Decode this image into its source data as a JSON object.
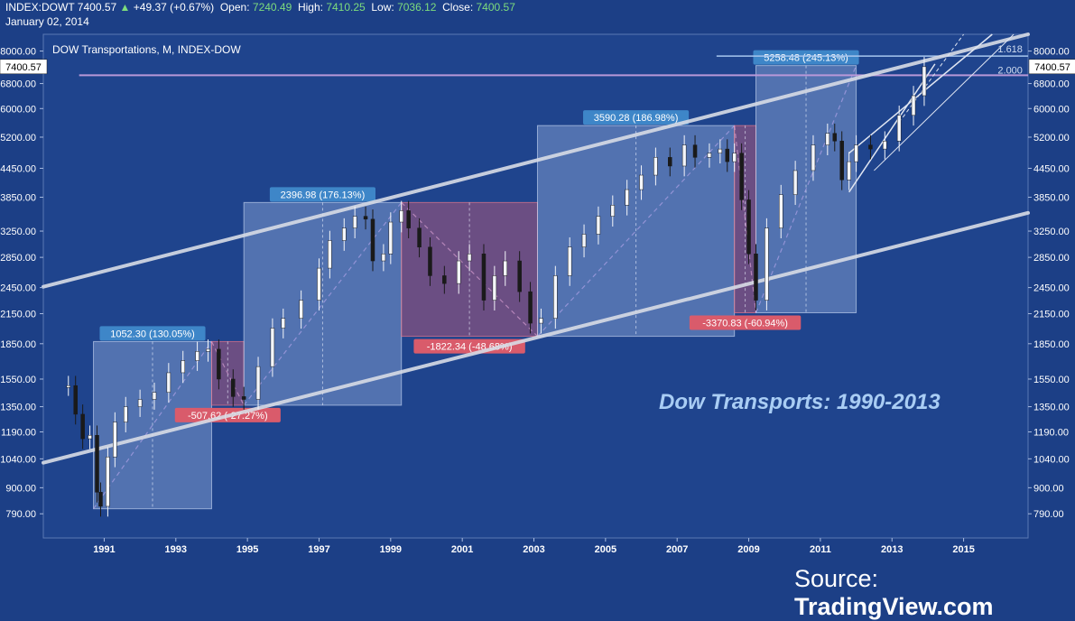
{
  "header": {
    "symbol": "INDEX:DOWT",
    "last": "7400.57",
    "change": "+49.37 (+0.67%)",
    "open_label": "Open:",
    "open": "7240.49",
    "high_label": "High:",
    "high": "7410.25",
    "low_label": "Low:",
    "low": "7036.12",
    "close_label": "Close:",
    "close": "7400.57",
    "date": "January 02, 2014"
  },
  "chart_data": {
    "type": "line",
    "subtitle": "DOW Transportations, M, INDEX-DOW",
    "title": "Dow Transports: 1990-2013",
    "source_label": "Source:",
    "source_name": "TradingView.com",
    "xlabel": "",
    "ylabel": "",
    "xlim": [
      1989.3,
      2016.8
    ],
    "ylim": [
      700,
      8700
    ],
    "y_scale": "log",
    "y_ticks": [
      790,
      900,
      1040,
      1190,
      1350,
      1550,
      1850,
      2150,
      2450,
      2850,
      3250,
      3850,
      4450,
      5200,
      6000,
      6800,
      8000
    ],
    "y_tick_labels": [
      "790.00",
      "900.00",
      "1040.00",
      "1190.00",
      "1350.00",
      "1550.00",
      "1850.00",
      "2150.00",
      "2450.00",
      "2850.00",
      "3250.00",
      "3850.00",
      "4450.00",
      "5200.00",
      "6000.00",
      "6800.00",
      "8000.00"
    ],
    "x_ticks": [
      1991,
      1993,
      1995,
      1997,
      1999,
      2001,
      2003,
      2005,
      2007,
      2009,
      2011,
      2013,
      2015
    ],
    "last_price_label": "7400.57",
    "last_price": 7400.57,
    "series": [
      {
        "x": [
          1990.0,
          1990.2,
          1990.4,
          1990.6,
          1990.8,
          1990.9,
          1991.1,
          1991.3,
          1991.6,
          1992.0,
          1992.4,
          1992.8,
          1993.2,
          1993.6,
          1993.9,
          1994.2,
          1994.6,
          1994.9,
          1995.3,
          1995.7,
          1996.0,
          1996.5,
          1997.0,
          1997.3,
          1997.7,
          1998.0,
          1998.3,
          1998.5,
          1998.8,
          1999.0,
          1999.3,
          1999.5,
          1999.8,
          2000.1,
          2000.5,
          2000.9,
          2001.2,
          2001.6,
          2001.9,
          2002.2,
          2002.6,
          2002.9,
          2003.2,
          2003.6,
          2004.0,
          2004.4,
          2004.8,
          2005.2,
          2005.6,
          2006.0,
          2006.4,
          2006.8,
          2007.2,
          2007.5,
          2007.9,
          2008.2,
          2008.4,
          2008.6,
          2008.8,
          2009.0,
          2009.2,
          2009.5,
          2009.9,
          2010.3,
          2010.8,
          2011.2,
          2011.4,
          2011.6,
          2011.8,
          2012.0,
          2012.4,
          2012.8,
          2013.2,
          2013.6,
          2013.9
        ],
        "values": [
          1500,
          1300,
          1150,
          1170,
          880,
          820,
          1050,
          1250,
          1350,
          1400,
          1450,
          1600,
          1700,
          1780,
          1800,
          1550,
          1420,
          1400,
          1650,
          2000,
          2100,
          2300,
          2700,
          3100,
          3300,
          3500,
          3450,
          2800,
          2900,
          3400,
          3600,
          3300,
          3000,
          2600,
          2500,
          2800,
          2900,
          2300,
          2600,
          2800,
          2400,
          2050,
          2100,
          2600,
          3000,
          3200,
          3500,
          3700,
          4000,
          4300,
          4700,
          4500,
          5000,
          4700,
          4800,
          4900,
          4600,
          4800,
          3800,
          2900,
          2300,
          3300,
          3900,
          4400,
          5000,
          5300,
          5100,
          4200,
          4600,
          5000,
          4900,
          5100,
          5800,
          6400,
          7400
        ]
      }
    ],
    "trend_channel": [
      {
        "name": "upper",
        "from": [
          1989.3,
          2460
        ],
        "to": [
          2016.8,
          8700
        ]
      },
      {
        "name": "lower",
        "from": [
          1989.3,
          1020
        ],
        "to": [
          2016.8,
          3560
        ]
      }
    ],
    "measurements": [
      {
        "label": "1052.30 (130.05%)",
        "kind": "gain",
        "x": [
          1990.7,
          1994.0
        ],
        "y": [
          810,
          1870
        ]
      },
      {
        "label": "-507.62 (-27.27%)",
        "kind": "loss",
        "x": [
          1994.0,
          1994.9
        ],
        "y": [
          1360,
          1870
        ]
      },
      {
        "label": "2396.98 (176.13%)",
        "kind": "gain",
        "x": [
          1994.9,
          1999.3
        ],
        "y": [
          1360,
          3750
        ]
      },
      {
        "label": "-1822.34 (-48.68%)",
        "kind": "loss",
        "x": [
          1999.3,
          2003.1
        ],
        "y": [
          1920,
          3750
        ]
      },
      {
        "label": "3590.28 (186.98%)",
        "kind": "gain",
        "x": [
          2003.1,
          2008.6
        ],
        "y": [
          1920,
          5510
        ]
      },
      {
        "label": "-3370.83 (-60.94%)",
        "kind": "loss",
        "x": [
          2008.6,
          2009.2
        ],
        "y": [
          2160,
          5510
        ]
      },
      {
        "label": "5258.48 (245.13%)",
        "kind": "gain",
        "x": [
          2009.2,
          2012.0
        ],
        "y": [
          2160,
          7440
        ]
      }
    ],
    "fib_labels": [
      "1.618",
      "2.000"
    ],
    "grid": false,
    "colors": {
      "background": "#1c3f86",
      "gain": "#7d9fd8",
      "loss": "#b45a7a",
      "channel": "#d8dce6",
      "label_gain": "#3e86c8",
      "label_loss": "#d95b6b"
    }
  }
}
